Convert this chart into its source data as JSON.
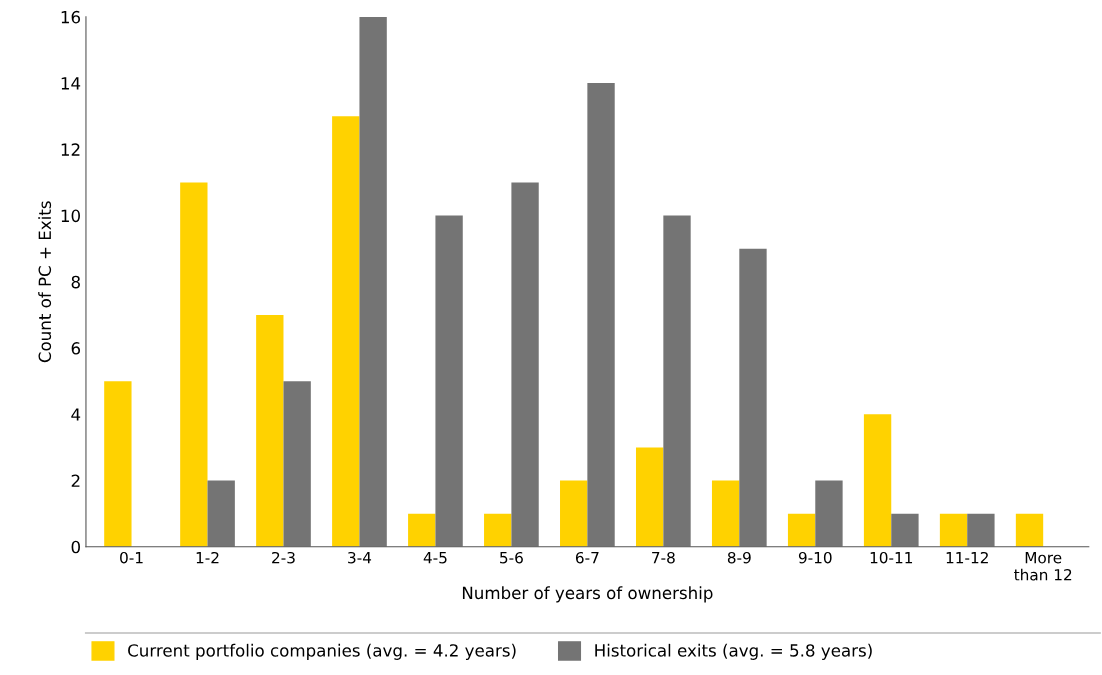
{
  "chart_data": {
    "type": "bar",
    "categories": [
      "0-1",
      "1-2",
      "2-3",
      "3-4",
      "4-5",
      "5-6",
      "6-7",
      "7-8",
      "8-9",
      "9-10",
      "10-11",
      "11-12",
      "More\nthan 12"
    ],
    "series": [
      {
        "name": "Current portfolio companies (avg. = 4.2 years)",
        "color": "#ffd200",
        "values": [
          5,
          11,
          7,
          13,
          1,
          1,
          2,
          3,
          2,
          1,
          4,
          1,
          1
        ]
      },
      {
        "name": "Historical exits (avg. = 5.8 years)",
        "color": "#747474",
        "values": [
          0,
          2,
          5,
          16,
          10,
          11,
          14,
          10,
          9,
          2,
          1,
          1,
          0
        ]
      }
    ],
    "xlabel": "Number of years of ownership",
    "ylabel": "Count of PC + Exits",
    "ylim": [
      0,
      16
    ],
    "yticks": [
      0,
      2,
      4,
      6,
      8,
      10,
      12,
      14,
      16
    ],
    "grid": false,
    "legend": "bottom"
  }
}
